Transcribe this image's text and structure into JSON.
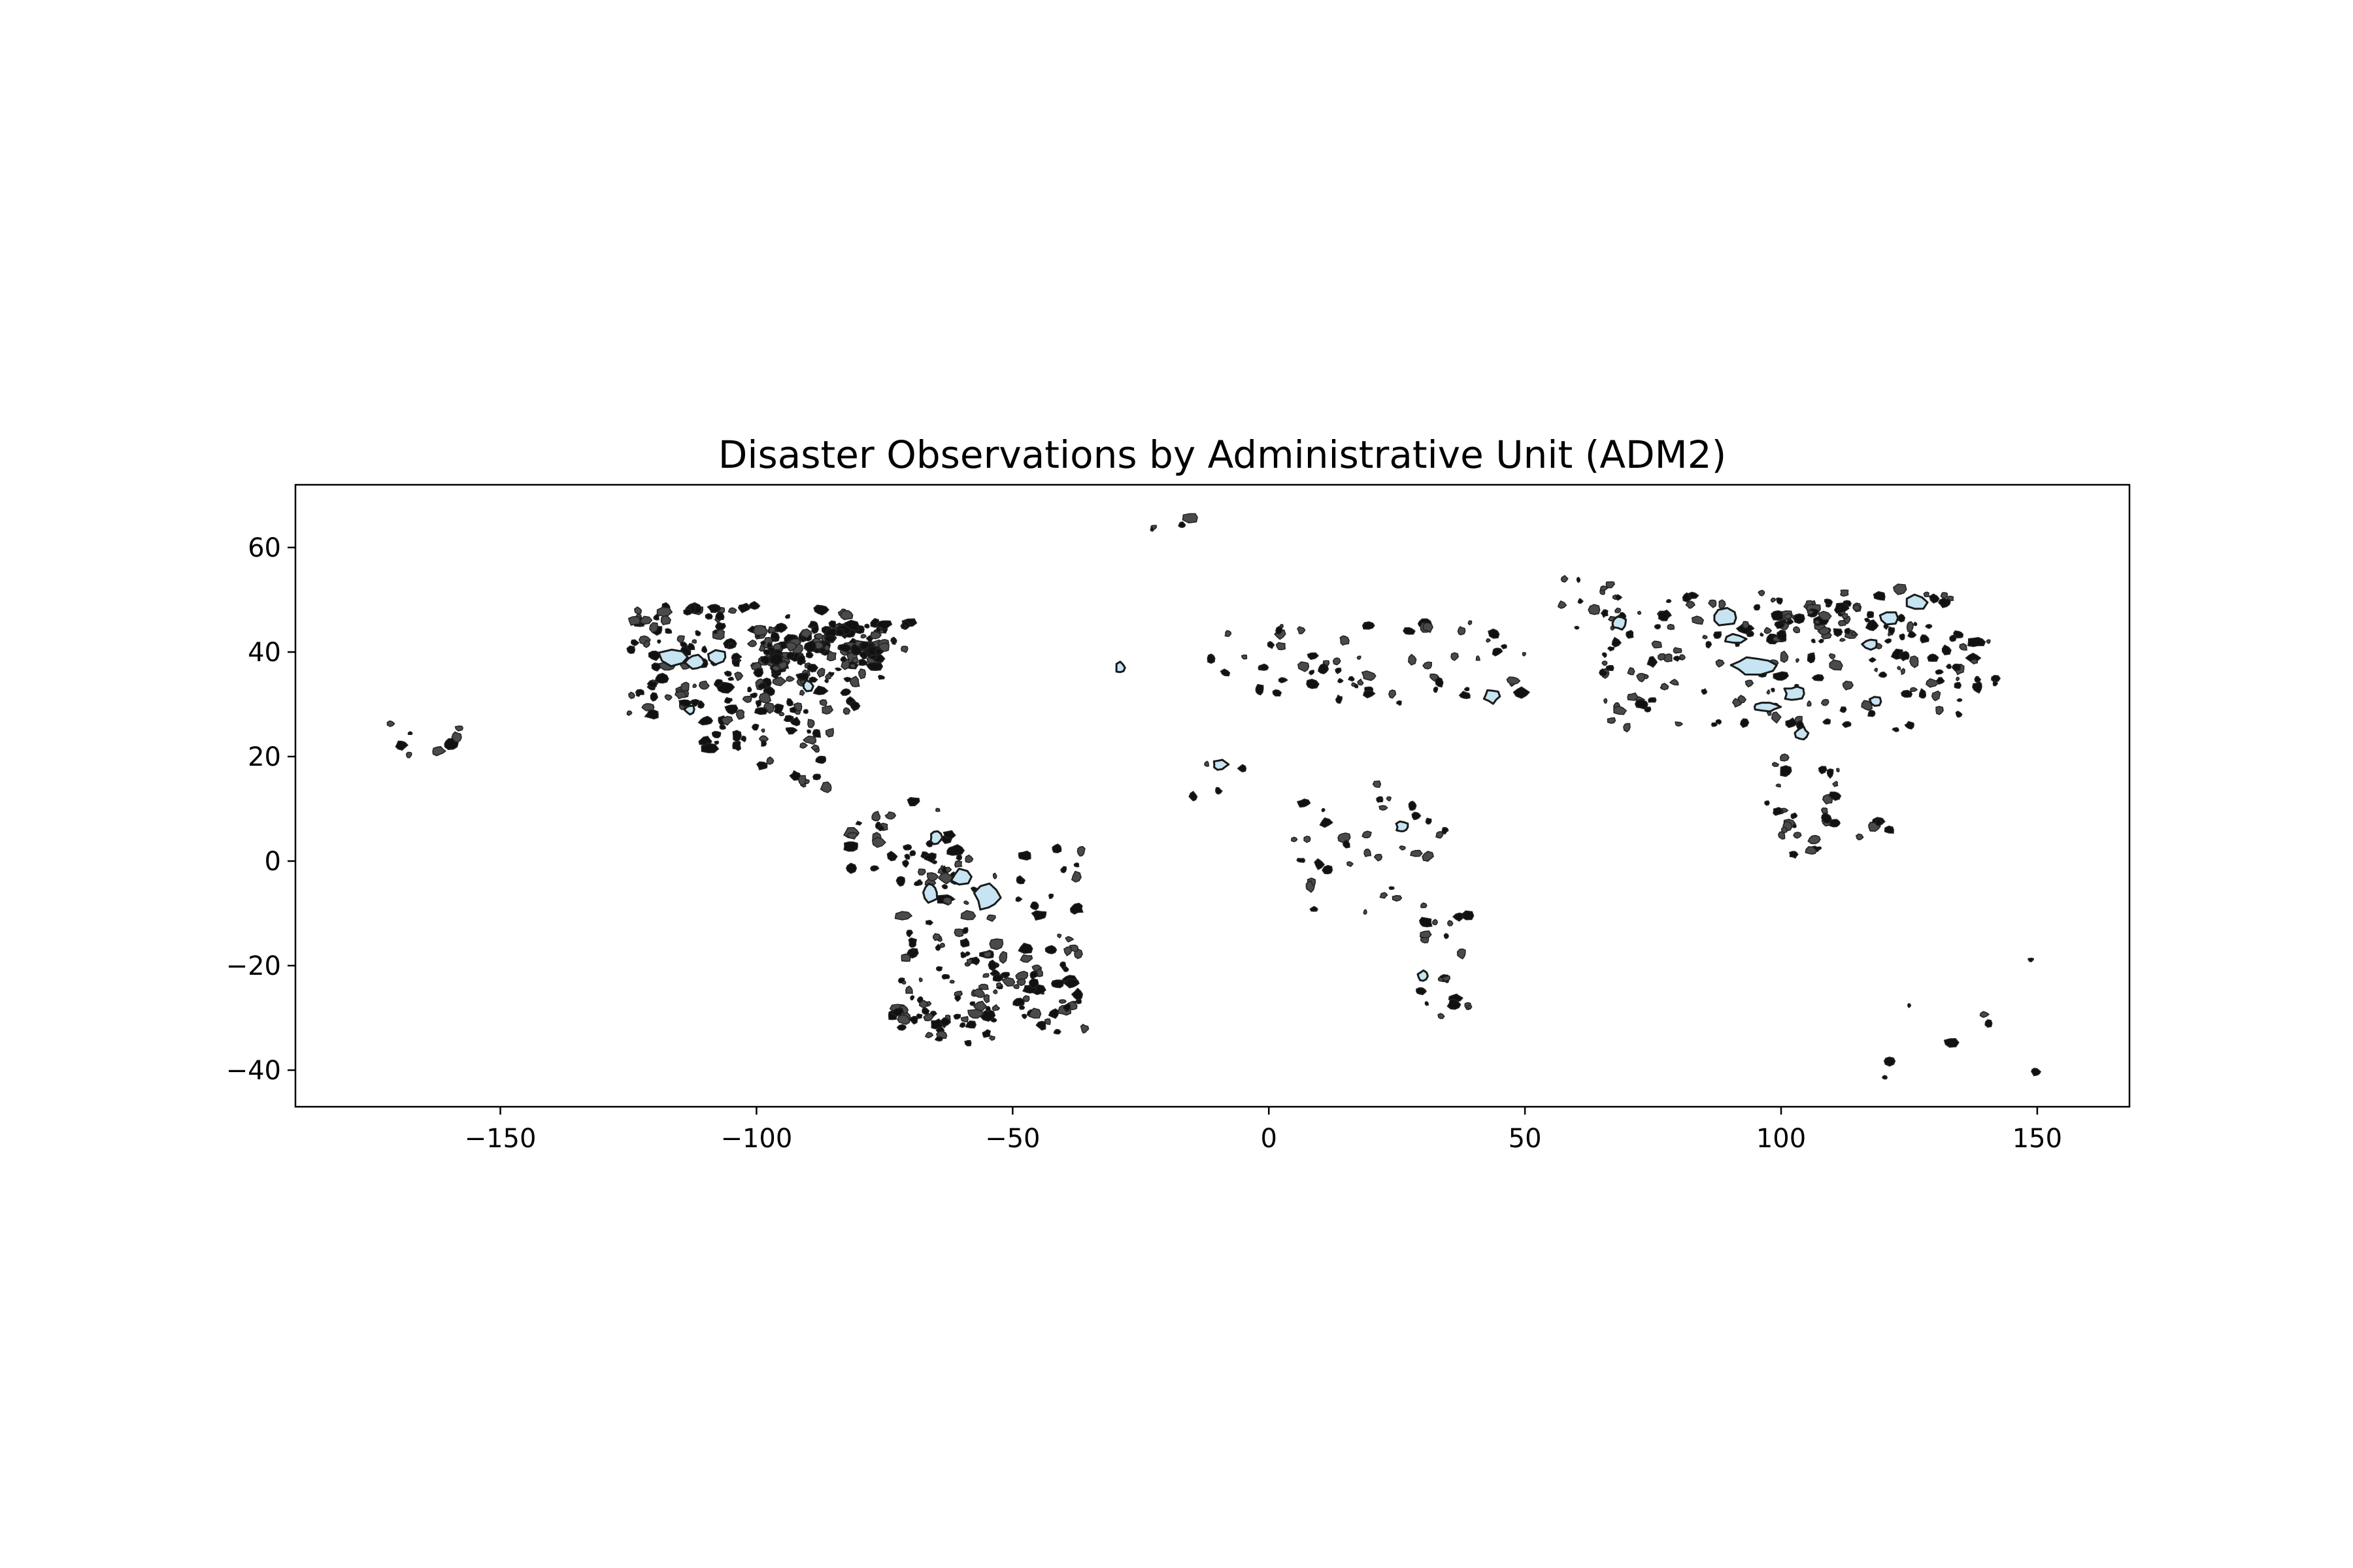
{
  "chart_data": {
    "type": "choropleth-map",
    "title": "Disaster Observations by Administrative Unit (ADM2)",
    "xlim": [
      -190,
      168
    ],
    "ylim": [
      -47,
      72
    ],
    "x_ticks": [
      -150,
      -100,
      -50,
      0,
      50,
      100,
      150
    ],
    "y_ticks": [
      -40,
      -20,
      0,
      20,
      40,
      60
    ],
    "x_tick_labels": [
      "−150",
      "−100",
      "−50",
      "0",
      "50",
      "100",
      "150"
    ],
    "y_tick_labels": [
      "−40",
      "−20",
      "0",
      "20",
      "40",
      "60"
    ],
    "fill_color": "#c6e4f2",
    "edge_color": "#1a1a1a",
    "grid": false,
    "large_regions": [
      {
        "lon": 94.5,
        "lat": 37.5,
        "w": 9,
        "h": 3.5
      },
      {
        "lon": 89,
        "lat": 46.5,
        "w": 5,
        "h": 3.5
      },
      {
        "lon": 91,
        "lat": 42.5,
        "w": 4,
        "h": 2
      },
      {
        "lon": 102.5,
        "lat": 32,
        "w": 4,
        "h": 3
      },
      {
        "lon": 97,
        "lat": 29.5,
        "w": 6,
        "h": 2
      },
      {
        "lon": 126.5,
        "lat": 49.5,
        "w": 4,
        "h": 3
      },
      {
        "lon": 121,
        "lat": 46.5,
        "w": 4,
        "h": 2.5
      },
      {
        "lon": 68.5,
        "lat": 45.5,
        "w": 3,
        "h": 2.5
      },
      {
        "lon": 104,
        "lat": 24.5,
        "w": 2.5,
        "h": 2.5
      },
      {
        "lon": 117.5,
        "lat": 41.5,
        "w": 3,
        "h": 2
      },
      {
        "lon": 118.5,
        "lat": 30.5,
        "w": 2.5,
        "h": 2
      },
      {
        "lon": -116,
        "lat": 39,
        "w": 6,
        "h": 3.5
      },
      {
        "lon": -112,
        "lat": 38,
        "w": 4,
        "h": 3
      },
      {
        "lon": -107.5,
        "lat": 39,
        "w": 4,
        "h": 2.5
      },
      {
        "lon": -55,
        "lat": -7,
        "w": 5,
        "h": 5
      },
      {
        "lon": -60,
        "lat": -3,
        "w": 4,
        "h": 3
      },
      {
        "lon": -66,
        "lat": -6,
        "w": 3,
        "h": 4
      },
      {
        "lon": -65,
        "lat": 4.5,
        "w": 2.5,
        "h": 2.5
      },
      {
        "lon": -9.5,
        "lat": 18.5,
        "w": 3,
        "h": 2
      },
      {
        "lon": 43.5,
        "lat": 31.5,
        "w": 3,
        "h": 2.5
      },
      {
        "lon": 26,
        "lat": 6.5,
        "w": 2.5,
        "h": 2
      },
      {
        "lon": -113,
        "lat": 29,
        "w": 2,
        "h": 2
      },
      {
        "lon": -90,
        "lat": 33.5,
        "w": 2,
        "h": 2
      },
      {
        "lon": -29,
        "lat": 37,
        "w": 2,
        "h": 2
      },
      {
        "lon": 30,
        "lat": -22,
        "w": 2,
        "h": 2
      }
    ],
    "scatter_clusters": [
      {
        "lon": [
          -125,
          -80
        ],
        "lat": [
          28,
          49
        ],
        "n": 170
      },
      {
        "lon": [
          -100,
          -75
        ],
        "lat": [
          35,
          45
        ],
        "n": 80
      },
      {
        "lon": [
          -90,
          -70
        ],
        "lat": [
          40,
          46
        ],
        "n": 40
      },
      {
        "lon": [
          -110,
          -85
        ],
        "lat": [
          14,
          32
        ],
        "n": 40
      },
      {
        "lon": [
          -82,
          -60
        ],
        "lat": [
          -2,
          12
        ],
        "n": 25
      },
      {
        "lon": [
          -72,
          -35
        ],
        "lat": [
          -35,
          3
        ],
        "n": 120
      },
      {
        "lon": [
          -60,
          -38
        ],
        "lat": [
          -30,
          -15
        ],
        "n": 40
      },
      {
        "lon": [
          -75,
          -60
        ],
        "lat": [
          -36,
          -28
        ],
        "n": 10
      },
      {
        "lon": [
          -175,
          -157
        ],
        "lat": [
          20,
          27
        ],
        "n": 8
      },
      {
        "lon": [
          -25,
          -15
        ],
        "lat": [
          63,
          67
        ],
        "n": 4
      },
      {
        "lon": [
          -17,
          -5
        ],
        "lat": [
          12,
          20
        ],
        "n": 4
      },
      {
        "lon": [
          -12,
          50
        ],
        "lat": [
          30,
          46
        ],
        "n": 60
      },
      {
        "lon": [
          5,
          35
        ],
        "lat": [
          -10,
          15
        ],
        "n": 35
      },
      {
        "lon": [
          28,
          40
        ],
        "lat": [
          -30,
          -10
        ],
        "n": 20
      },
      {
        "lon": [
          55,
          70
        ],
        "lat": [
          40,
          55
        ],
        "n": 15
      },
      {
        "lon": [
          65,
          135
        ],
        "lat": [
          25,
          52
        ],
        "n": 140
      },
      {
        "lon": [
          98,
          115
        ],
        "lat": [
          42,
          50
        ],
        "n": 40
      },
      {
        "lon": [
          95,
          112
        ],
        "lat": [
          1,
          20
        ],
        "n": 30
      },
      {
        "lon": [
          115,
          122
        ],
        "lat": [
          4,
          8
        ],
        "n": 5
      },
      {
        "lon": [
          120,
          142
        ],
        "lat": [
          30,
          45
        ],
        "n": 25
      },
      {
        "lon": [
          118,
          152
        ],
        "lat": [
          -42,
          -18
        ],
        "n": 8
      }
    ]
  }
}
